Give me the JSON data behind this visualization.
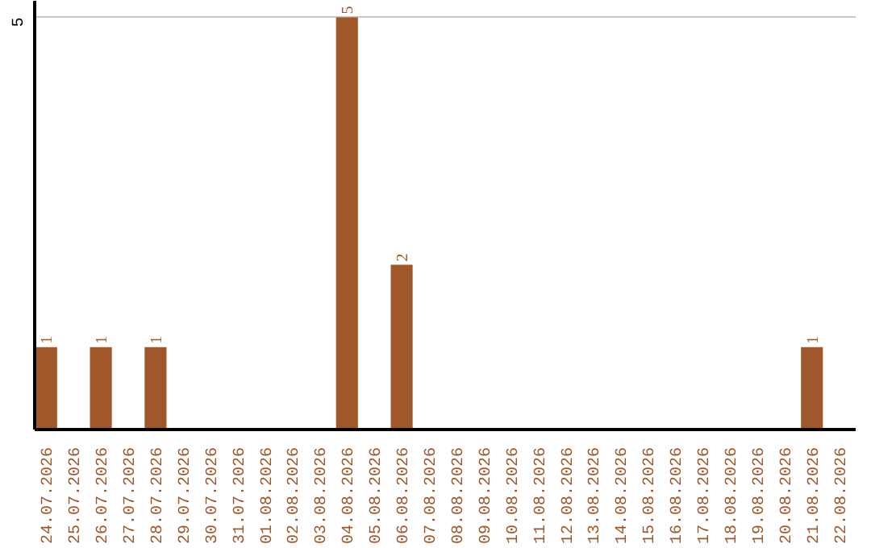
{
  "chart_data": {
    "type": "bar",
    "categories": [
      "24.07.2026",
      "25.07.2026",
      "26.07.2026",
      "27.07.2026",
      "28.07.2026",
      "29.07.2026",
      "30.07.2026",
      "31.07.2026",
      "01.08.2026",
      "02.08.2026",
      "03.08.2026",
      "04.08.2026",
      "05.08.2026",
      "06.08.2026",
      "07.08.2026",
      "08.08.2026",
      "09.08.2026",
      "10.08.2026",
      "11.08.2026",
      "12.08.2026",
      "13.08.2026",
      "14.08.2026",
      "15.08.2026",
      "16.08.2026",
      "17.08.2026",
      "18.08.2026",
      "19.08.2026",
      "20.08.2026",
      "21.08.2026",
      "22.08.2026"
    ],
    "values": [
      1,
      0,
      1,
      0,
      1,
      0,
      0,
      0,
      0,
      0,
      0,
      5,
      0,
      2,
      0,
      0,
      0,
      0,
      0,
      0,
      0,
      0,
      0,
      0,
      0,
      0,
      0,
      0,
      1,
      0
    ],
    "value_labels": [
      "1",
      null,
      "1",
      null,
      "1",
      null,
      null,
      null,
      null,
      null,
      null,
      "5",
      null,
      "2",
      null,
      null,
      null,
      null,
      null,
      null,
      null,
      null,
      null,
      null,
      null,
      null,
      null,
      null,
      "1",
      null
    ],
    "color": "#a0572a",
    "ylim": [
      0,
      5.2
    ],
    "yticks": [
      5
    ],
    "grid": "y"
  }
}
